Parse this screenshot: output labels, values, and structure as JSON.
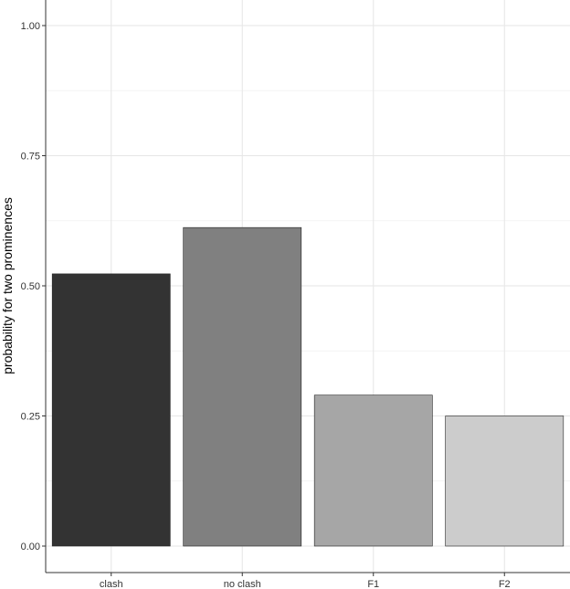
{
  "chart_data": {
    "type": "bar",
    "title": "",
    "xlabel": "",
    "ylabel": "probability for two prominences",
    "categories": [
      "clash",
      "no clash",
      "F1",
      "F2"
    ],
    "values": [
      0.523,
      0.612,
      0.29,
      0.25
    ],
    "ylim": [
      0,
      1.0
    ],
    "yticks": [
      0.0,
      0.25,
      0.5,
      0.75,
      1.0
    ],
    "ytick_labels": [
      "0.00",
      "0.25",
      "0.50",
      "0.75",
      "1.00"
    ],
    "bar_colors": [
      "#333333",
      "#808080",
      "#a6a6a6",
      "#cccccc"
    ],
    "grid": true,
    "legend": "none"
  }
}
